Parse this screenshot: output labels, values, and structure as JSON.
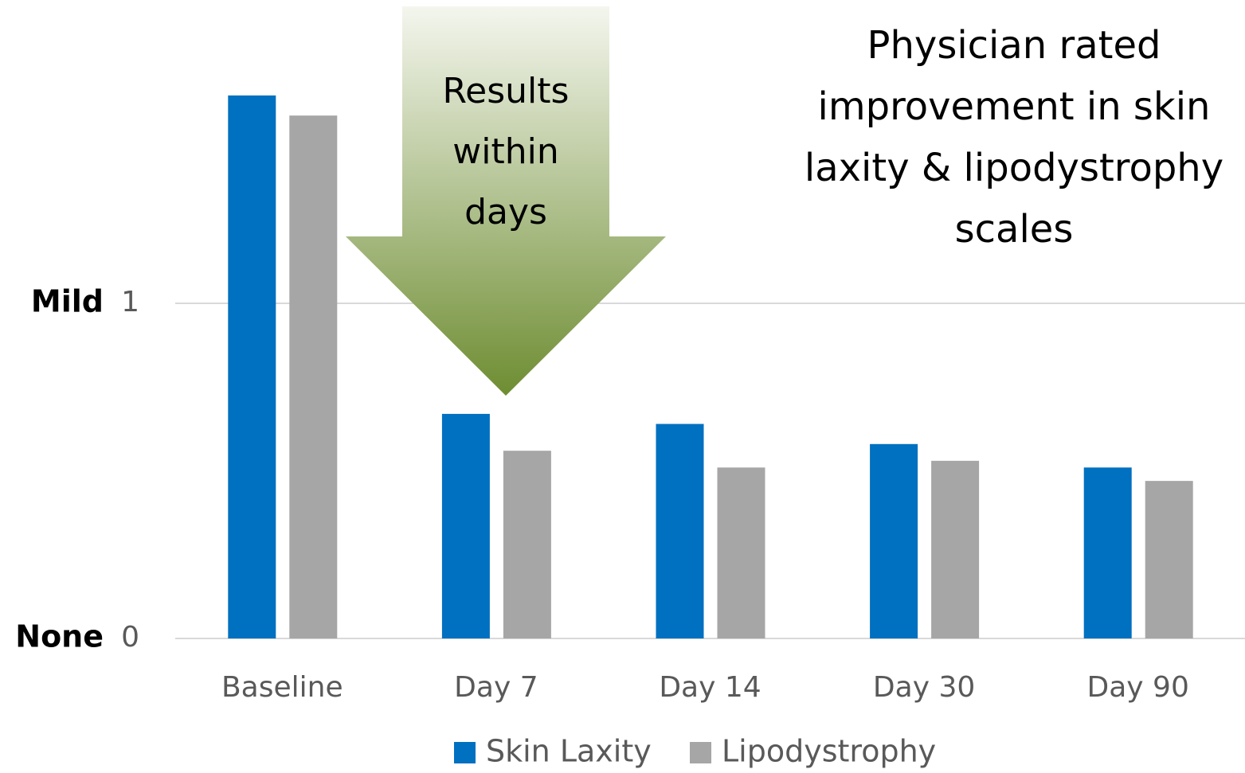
{
  "chart_data": {
    "type": "bar",
    "title_lines": [
      "Physician rated",
      "improvement in skin",
      "laxity & lipodystrophy",
      "scales"
    ],
    "annotation_lines": [
      "Results",
      "within",
      "days"
    ],
    "categories": [
      "Baseline",
      "Day 7",
      "Day 14",
      "Day 30",
      "Day 90"
    ],
    "series": [
      {
        "name": "Skin Laxity",
        "color": "#0070c0",
        "values": [
          1.62,
          0.67,
          0.64,
          0.58,
          0.51
        ]
      },
      {
        "name": "Lipodystrophy",
        "color": "#a6a6a6",
        "values": [
          1.56,
          0.56,
          0.51,
          0.53,
          0.47
        ]
      }
    ],
    "ylim": [
      0,
      1.9
    ],
    "yticks": [
      0,
      1
    ],
    "y_level_labels": [
      "None",
      "Mild"
    ],
    "grid": true,
    "legend": "bottom"
  }
}
